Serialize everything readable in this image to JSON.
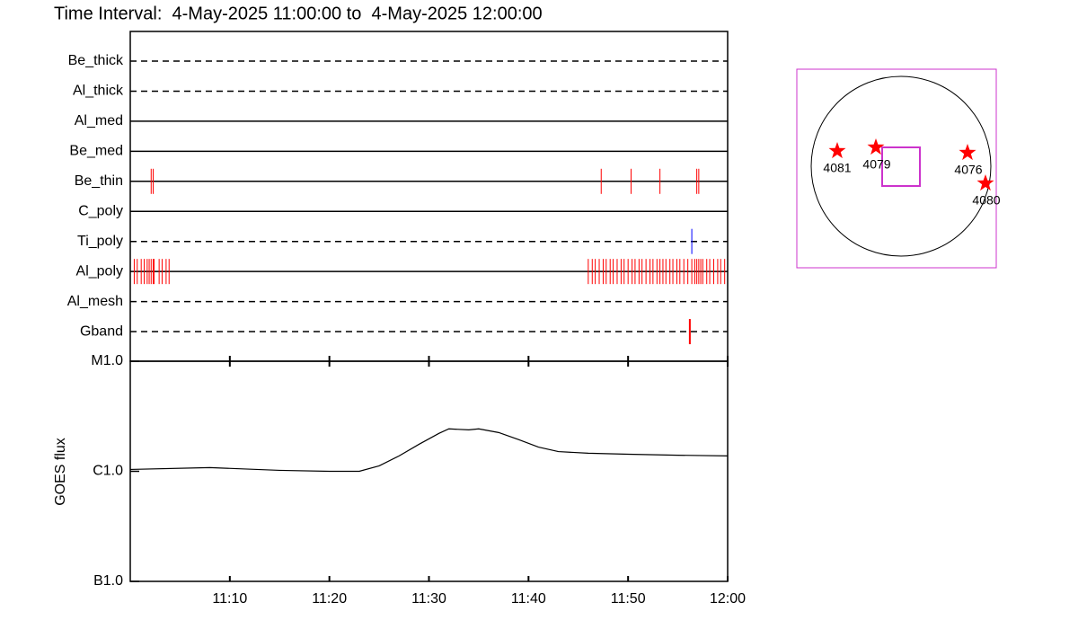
{
  "chart_data": [
    {
      "type": "event",
      "title": "Time Interval:  4-May-2025 11:00:00 to  4-May-2025 12:00:00",
      "xlim": [
        0,
        60
      ],
      "xticks": [
        {
          "value": 10,
          "label": "11:10"
        },
        {
          "value": 20,
          "label": "11:20"
        },
        {
          "value": 30,
          "label": "11:30"
        },
        {
          "value": 40,
          "label": "11:40"
        },
        {
          "value": 50,
          "label": "11:50"
        },
        {
          "value": 60,
          "label": "12:00"
        }
      ],
      "rows": [
        {
          "name": "Be_thick",
          "style": "dashed",
          "color": "#ff0000",
          "events": []
        },
        {
          "name": "Al_thick",
          "style": "dashed",
          "color": "#ff0000",
          "events": []
        },
        {
          "name": "Al_med",
          "style": "solid",
          "color": "#ff0000",
          "events": []
        },
        {
          "name": "Be_med",
          "style": "solid",
          "color": "#ff0000",
          "events": []
        },
        {
          "name": "Be_thin",
          "style": "solid",
          "color": "#ff0000",
          "events": [
            2.1,
            2.3,
            47.3,
            50.3,
            53.2,
            56.9,
            57.1
          ]
        },
        {
          "name": "C_poly",
          "style": "solid",
          "color": "#ff0000",
          "events": []
        },
        {
          "name": "Ti_poly",
          "style": "dashed",
          "color": "#0000ff",
          "events": [
            56.4
          ]
        },
        {
          "name": "Al_poly",
          "style": "solid",
          "color": "#ff0000",
          "events": [
            0.4,
            0.7,
            1.1,
            1.4,
            1.7,
            1.9,
            2.1,
            2.3,
            2.4,
            2.9,
            3.2,
            3.6,
            3.9,
            46.0,
            46.4,
            46.7,
            47.1,
            47.5,
            47.8,
            48.2,
            48.5,
            48.9,
            49.3,
            49.6,
            50.0,
            50.4,
            50.7,
            51.1,
            51.4,
            51.8,
            52.2,
            52.5,
            52.9,
            53.2,
            53.5,
            53.8,
            54.2,
            54.5,
            54.9,
            55.2,
            55.6,
            56.0,
            56.4,
            56.7,
            56.9,
            57.1,
            57.3,
            57.5,
            57.9,
            58.2,
            58.6,
            59.0,
            59.3,
            59.7
          ]
        },
        {
          "name": "Al_mesh",
          "style": "dashed",
          "color": "#ff0000",
          "events": []
        },
        {
          "name": "Gband",
          "style": "dashed",
          "color": "#ff0000",
          "events": [
            56.2
          ]
        }
      ]
    },
    {
      "type": "line",
      "ylabel": "GOES flux",
      "log_scale": true,
      "color": "#000000",
      "xlim": [
        0,
        60
      ],
      "ylim": [
        1e-07,
        1e-05
      ],
      "yticks": [
        {
          "value": 1e-05,
          "label": "M1.0"
        },
        {
          "value": 1e-06,
          "label": "C1.0"
        },
        {
          "value": 1e-07,
          "label": "B1.0"
        }
      ],
      "x": [
        0,
        8,
        15,
        20,
        23,
        25,
        27,
        29,
        31,
        32,
        34,
        35,
        37,
        39,
        41,
        43,
        46,
        50,
        55,
        60
      ],
      "values": [
        1.04e-06,
        1.08e-06,
        1.02e-06,
        1e-06,
        1e-06,
        1.12e-06,
        1.38e-06,
        1.76e-06,
        2.21e-06,
        2.43e-06,
        2.38e-06,
        2.43e-06,
        2.25e-06,
        1.94e-06,
        1.66e-06,
        1.51e-06,
        1.46e-06,
        1.43e-06,
        1.4e-06,
        1.38e-06
      ]
    }
  ],
  "context_map": {
    "regions": [
      "4081",
      "4079",
      "4076",
      "4080"
    ]
  }
}
